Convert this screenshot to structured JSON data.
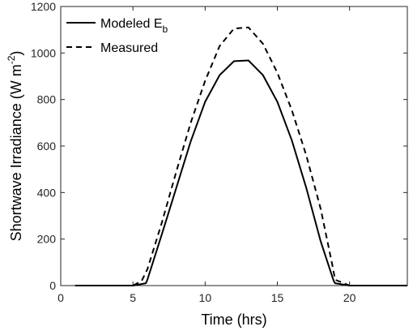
{
  "chart_data": {
    "type": "line",
    "xlabel": "Time (hrs)",
    "ylabel": {
      "main": "Shortwave Irradiance (W m",
      "sup": "-2",
      "close": ")"
    },
    "xlim": [
      0,
      24
    ],
    "ylim": [
      0,
      1200
    ],
    "xticks": [
      "0",
      "5",
      "10",
      "15",
      "20"
    ],
    "yticks": [
      "0",
      "200",
      "400",
      "600",
      "800",
      "1000",
      "1200"
    ],
    "grid": false,
    "legend_position": "top-left",
    "series": [
      {
        "name": "Modeled E",
        "name_sub": "b",
        "style": "solid",
        "color": "#000000",
        "x": [
          1,
          5,
          5.9,
          6,
          7,
          8,
          9,
          10,
          11,
          12,
          13,
          14,
          15,
          16,
          17,
          18,
          18.9,
          19,
          20,
          24
        ],
        "y": [
          0,
          0,
          10,
          25,
          220,
          420,
          620,
          790,
          905,
          965,
          968,
          905,
          790,
          625,
          420,
          190,
          20,
          10,
          0,
          0
        ]
      },
      {
        "name": "Measured",
        "style": "dashed",
        "color": "#000000",
        "x": [
          1,
          5,
          5.6,
          6,
          7,
          8,
          9,
          10,
          11,
          12,
          13,
          14,
          15,
          16,
          17,
          18,
          18.8,
          19,
          20,
          24
        ],
        "y": [
          0,
          0,
          20,
          70,
          270,
          490,
          700,
          880,
          1030,
          1105,
          1110,
          1040,
          915,
          755,
          560,
          330,
          90,
          25,
          0,
          0
        ]
      }
    ]
  }
}
